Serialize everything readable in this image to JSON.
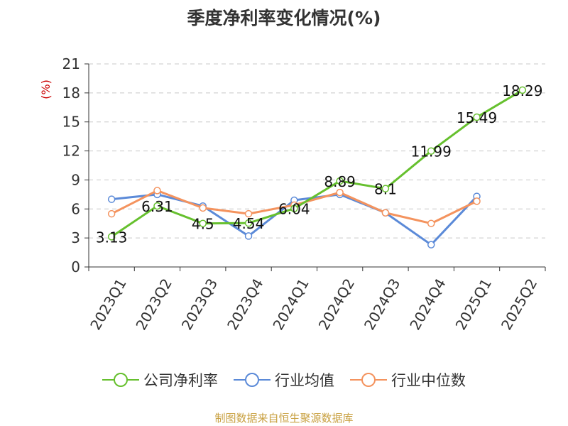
{
  "chart_data": {
    "type": "line",
    "title": "季度净利率变化情况(%)",
    "ylabel": "(%)",
    "xlabel": "",
    "categories": [
      "2023Q1",
      "2023Q2",
      "2023Q3",
      "2023Q4",
      "2024Q1",
      "2024Q2",
      "2024Q3",
      "2024Q4",
      "2025Q1",
      "2025Q2"
    ],
    "ylim": [
      0,
      21
    ],
    "yticks": [
      0,
      3,
      6,
      9,
      12,
      15,
      18,
      21
    ],
    "grid": "horizontal-dashed",
    "legend_position": "bottom",
    "series": [
      {
        "name": "公司净利率",
        "color": "#66c02e",
        "values": [
          3.13,
          6.31,
          4.5,
          4.54,
          6.04,
          8.89,
          8.1,
          11.99,
          15.49,
          18.29
        ],
        "labels": [
          "3.13",
          "6.31",
          "4.5",
          "4.54",
          "6.04",
          "8.89",
          "8.1",
          "11.99",
          "15.49",
          "18.29"
        ]
      },
      {
        "name": "行业均值",
        "color": "#5b8ad8",
        "values": [
          7.0,
          7.5,
          6.3,
          3.2,
          6.9,
          7.5,
          5.6,
          2.3,
          7.3,
          null
        ]
      },
      {
        "name": "行业中位数",
        "color": "#f4935e",
        "values": [
          5.5,
          7.9,
          6.1,
          5.5,
          6.4,
          7.7,
          5.6,
          4.5,
          6.8,
          null
        ]
      }
    ]
  },
  "footer": "制图数据来自恒生聚源数据库"
}
